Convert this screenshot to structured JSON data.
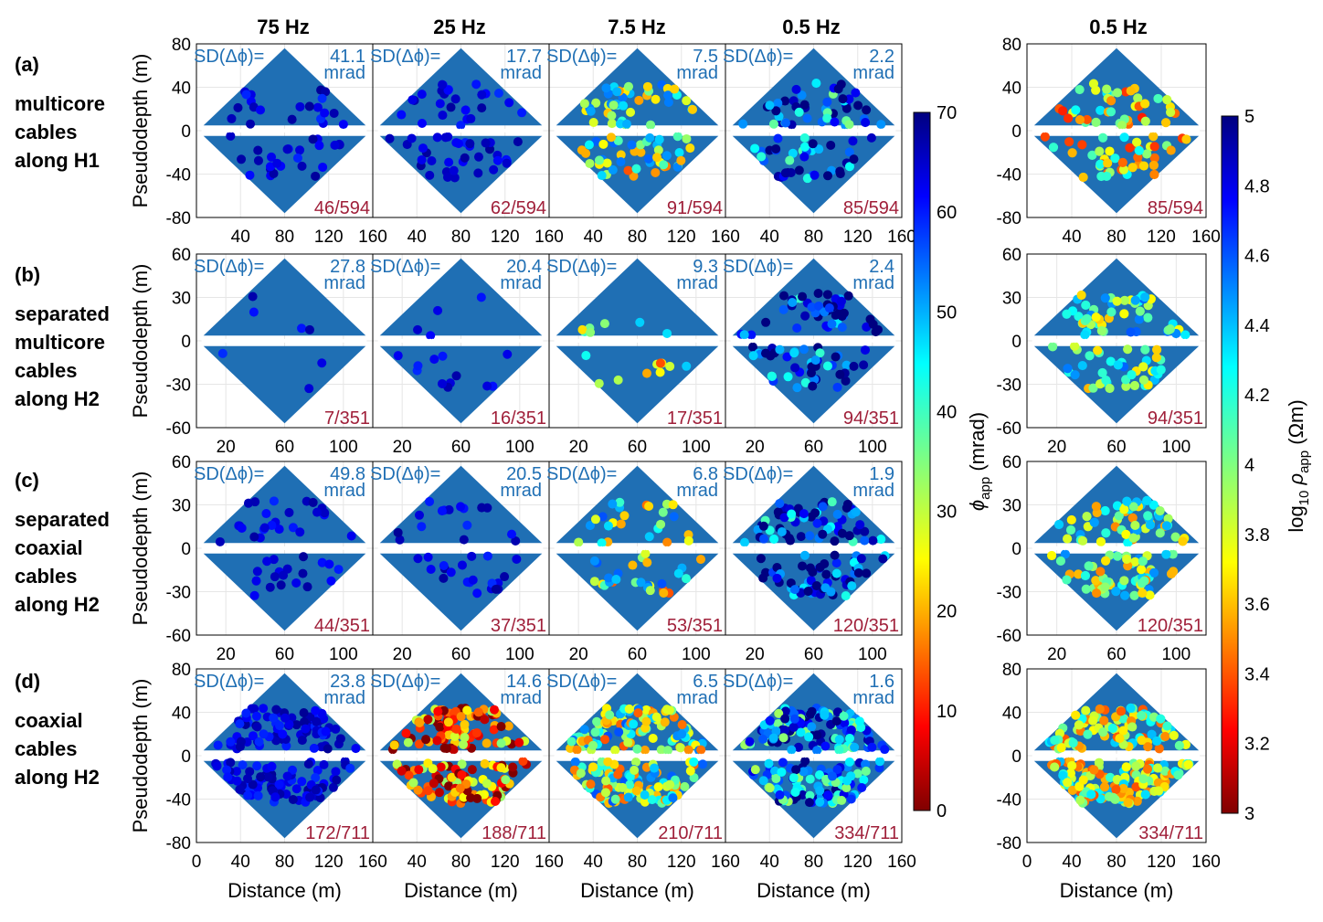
{
  "figure": {
    "column_headers": [
      "75 Hz",
      "25 Hz",
      "7.5 Hz",
      "0.5 Hz",
      "0.5 Hz"
    ],
    "ylabel": "Pseudodepth (m)",
    "xlabel": "Distance (m)",
    "sd_label": "SD(Δϕ)=",
    "sd_unit": "mrad"
  },
  "row_labels": [
    {
      "letter": "(a)",
      "lines": [
        "multicore",
        "cables",
        "along H1"
      ]
    },
    {
      "letter": "(b)",
      "lines": [
        "separated",
        "multicore",
        "cables",
        "along H2"
      ]
    },
    {
      "letter": "(c)",
      "lines": [
        "separated",
        "coaxial",
        "cables",
        "along H2"
      ]
    },
    {
      "letter": "(d)",
      "lines": [
        "coaxial",
        "cables",
        "along H2"
      ]
    }
  ],
  "colors": {
    "background_marker": "#1f6fb4",
    "sd_text": "#1f6fb4",
    "count_text": "#a0203a",
    "white_gap": "#ffffff"
  },
  "colorbars": {
    "phase": {
      "label": "ϕapp (mrad)",
      "label_main": "ϕ",
      "label_sub": "app",
      "label_unit": " (mrad)",
      "min": 0,
      "max": 70,
      "ticks": [
        "0",
        "10",
        "20",
        "30",
        "40",
        "50",
        "60",
        "70"
      ],
      "colormap": "jet_reversed"
    },
    "resistivity": {
      "label": "log10 ρapp (Ωm)",
      "label_main": "log",
      "label_sub1": "10",
      "label_mid": " ρ",
      "label_sub2": "app",
      "label_unit": "  (Ωm)",
      "min": 3,
      "max": 5,
      "ticks": [
        "3",
        "3.2",
        "3.4",
        "3.6",
        "3.8",
        "4",
        "4.2",
        "4.4",
        "4.6",
        "4.8",
        "5"
      ],
      "colormap": "jet_reversed"
    }
  },
  "chart_data": [
    {
      "type": "scatter",
      "row": "a",
      "column": "75 Hz",
      "sd": "41.1",
      "count": "46/594",
      "show_xticks": true,
      "x_range": [
        0,
        160
      ],
      "y_range": [
        -80,
        80
      ],
      "xticks": [
        "40",
        "80",
        "120",
        "160"
      ],
      "yticks": [
        "80",
        "40",
        "0",
        "-40",
        "-80"
      ],
      "outlier_level": 0.95
    },
    {
      "type": "scatter",
      "row": "a",
      "column": "25 Hz",
      "sd": "17.7",
      "count": "62/594",
      "show_xticks": true,
      "x_range": [
        0,
        160
      ],
      "y_range": [
        -80,
        80
      ],
      "xticks": [
        "40",
        "80",
        "120",
        "160"
      ],
      "yticks": [
        "80",
        "40",
        "0",
        "-40",
        "-80"
      ],
      "outlier_level": 0.85
    },
    {
      "type": "scatter",
      "row": "a",
      "column": "7.5 Hz",
      "sd": "7.5",
      "count": "91/594",
      "show_xticks": true,
      "x_range": [
        0,
        160
      ],
      "y_range": [
        -80,
        80
      ],
      "xticks": [
        "40",
        "80",
        "120",
        "160"
      ],
      "yticks": [
        "80",
        "40",
        "0",
        "-40",
        "-80"
      ],
      "outlier_level": 0.5
    },
    {
      "type": "scatter",
      "row": "a",
      "column": "0.5 Hz",
      "sd": "2.2",
      "count": "85/594",
      "show_xticks": true,
      "x_range": [
        0,
        160
      ],
      "y_range": [
        -80,
        80
      ],
      "xticks": [
        "40",
        "80",
        "120",
        "160"
      ],
      "yticks": [
        "80",
        "40",
        "0",
        "-40",
        "-80"
      ],
      "outlier_level": 0.2
    },
    {
      "type": "scatter",
      "row": "a",
      "column": "0.5 Hz resistivity",
      "count": "85/594",
      "show_xticks": true,
      "x_range": [
        0,
        160
      ],
      "y_range": [
        -80,
        80
      ],
      "xticks": [
        "40",
        "80",
        "120",
        "160"
      ],
      "yticks": [
        "80",
        "40",
        "0",
        "-40",
        "-80"
      ],
      "resistivity_level": 0.6
    },
    {
      "type": "scatter",
      "row": "b",
      "column": "75 Hz",
      "sd": "27.8",
      "count": "7/351",
      "show_xticks": true,
      "x_range": [
        0,
        120
      ],
      "y_range": [
        -60,
        60
      ],
      "xticks": [
        "20",
        "60",
        "100"
      ],
      "yticks": [
        "60",
        "30",
        "0",
        "-30",
        "-60"
      ],
      "outlier_level": 0.95
    },
    {
      "type": "scatter",
      "row": "b",
      "column": "25 Hz",
      "sd": "20.4",
      "count": "16/351",
      "show_xticks": true,
      "x_range": [
        0,
        120
      ],
      "y_range": [
        -60,
        60
      ],
      "xticks": [
        "20",
        "60",
        "100"
      ],
      "yticks": [
        "60",
        "30",
        "0",
        "-30",
        "-60"
      ],
      "outlier_level": 0.95
    },
    {
      "type": "scatter",
      "row": "b",
      "column": "7.5 Hz",
      "sd": "9.3",
      "count": "17/351",
      "show_xticks": true,
      "x_range": [
        0,
        120
      ],
      "y_range": [
        -60,
        60
      ],
      "xticks": [
        "20",
        "60",
        "100"
      ],
      "yticks": [
        "60",
        "30",
        "0",
        "-30",
        "-60"
      ],
      "outlier_level": 0.55
    },
    {
      "type": "scatter",
      "row": "b",
      "column": "0.5 Hz",
      "sd": "2.4",
      "count": "94/351",
      "show_xticks": true,
      "x_range": [
        0,
        120
      ],
      "y_range": [
        -60,
        60
      ],
      "xticks": [
        "20",
        "60",
        "100"
      ],
      "yticks": [
        "60",
        "30",
        "0",
        "-30",
        "-60"
      ],
      "outlier_level": 0.15
    },
    {
      "type": "scatter",
      "row": "b",
      "column": "0.5 Hz resistivity",
      "count": "94/351",
      "show_xticks": true,
      "x_range": [
        0,
        120
      ],
      "y_range": [
        -60,
        60
      ],
      "xticks": [
        "20",
        "60",
        "100"
      ],
      "yticks": [
        "60",
        "30",
        "0",
        "-30",
        "-60"
      ],
      "resistivity_level": 0.45
    },
    {
      "type": "scatter",
      "row": "c",
      "column": "75 Hz",
      "sd": "49.8",
      "count": "44/351",
      "show_xticks": true,
      "x_range": [
        0,
        120
      ],
      "y_range": [
        -60,
        60
      ],
      "xticks": [
        "20",
        "60",
        "100"
      ],
      "yticks": [
        "60",
        "30",
        "0",
        "-30",
        "-60"
      ],
      "outlier_level": 0.95
    },
    {
      "type": "scatter",
      "row": "c",
      "column": "25 Hz",
      "sd": "20.5",
      "count": "37/351",
      "show_xticks": true,
      "x_range": [
        0,
        120
      ],
      "y_range": [
        -60,
        60
      ],
      "xticks": [
        "20",
        "60",
        "100"
      ],
      "yticks": [
        "60",
        "30",
        "0",
        "-30",
        "-60"
      ],
      "outlier_level": 0.85
    },
    {
      "type": "scatter",
      "row": "c",
      "column": "7.5 Hz",
      "sd": "6.8",
      "count": "53/351",
      "show_xticks": true,
      "x_range": [
        0,
        120
      ],
      "y_range": [
        -60,
        60
      ],
      "xticks": [
        "20",
        "60",
        "100"
      ],
      "yticks": [
        "60",
        "30",
        "0",
        "-30",
        "-60"
      ],
      "outlier_level": 0.5
    },
    {
      "type": "scatter",
      "row": "c",
      "column": "0.5 Hz",
      "sd": "1.9",
      "count": "120/351",
      "show_xticks": true,
      "x_range": [
        0,
        120
      ],
      "y_range": [
        -60,
        60
      ],
      "xticks": [
        "20",
        "60",
        "100"
      ],
      "yticks": [
        "60",
        "30",
        "0",
        "-30",
        "-60"
      ],
      "outlier_level": 0.15
    },
    {
      "type": "scatter",
      "row": "c",
      "column": "0.5 Hz resistivity",
      "count": "120/351",
      "show_xticks": true,
      "x_range": [
        0,
        120
      ],
      "y_range": [
        -60,
        60
      ],
      "xticks": [
        "20",
        "60",
        "100"
      ],
      "yticks": [
        "60",
        "30",
        "0",
        "-30",
        "-60"
      ],
      "resistivity_level": 0.5
    },
    {
      "type": "scatter",
      "row": "d",
      "column": "75 Hz",
      "sd": "23.8",
      "count": "172/711",
      "show_xticks": true,
      "x_range": [
        0,
        160
      ],
      "y_range": [
        -80,
        80
      ],
      "xticks": [
        "0",
        "40",
        "80",
        "120",
        "160"
      ],
      "yticks": [
        "80",
        "40",
        "0",
        "-40",
        "-80"
      ],
      "outlier_level": 0.95
    },
    {
      "type": "scatter",
      "row": "d",
      "column": "25 Hz",
      "sd": "14.6",
      "count": "188/711",
      "show_xticks": true,
      "x_range": [
        0,
        160
      ],
      "y_range": [
        -80,
        80
      ],
      "xticks": [
        "40",
        "80",
        "120",
        "160"
      ],
      "yticks": [
        "80",
        "40",
        "0",
        "-40",
        "-80"
      ],
      "outlier_level": 0.8
    },
    {
      "type": "scatter",
      "row": "d",
      "column": "7.5 Hz",
      "sd": "6.5",
      "count": "210/711",
      "show_xticks": true,
      "x_range": [
        0,
        160
      ],
      "y_range": [
        -80,
        80
      ],
      "xticks": [
        "40",
        "80",
        "120",
        "160"
      ],
      "yticks": [
        "80",
        "40",
        "0",
        "-40",
        "-80"
      ],
      "outlier_level": 0.5
    },
    {
      "type": "scatter",
      "row": "d",
      "column": "0.5 Hz",
      "sd": "1.6",
      "count": "334/711",
      "show_xticks": true,
      "x_range": [
        0,
        160
      ],
      "y_range": [
        -80,
        80
      ],
      "xticks": [
        "40",
        "80",
        "120",
        "160"
      ],
      "yticks": [
        "80",
        "40",
        "0",
        "-40",
        "-80"
      ],
      "outlier_level": 0.25
    },
    {
      "type": "scatter",
      "row": "d",
      "column": "0.5 Hz resistivity",
      "count": "334/711",
      "show_xticks": true,
      "x_range": [
        0,
        160
      ],
      "y_range": [
        -80,
        80
      ],
      "xticks": [
        "0",
        "40",
        "80",
        "120",
        "160"
      ],
      "yticks": [
        "80",
        "40",
        "0",
        "-40",
        "-80"
      ],
      "resistivity_level": 0.55
    }
  ]
}
